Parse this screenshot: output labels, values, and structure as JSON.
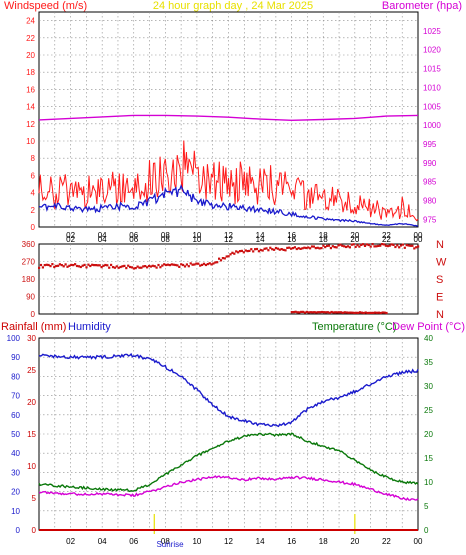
{
  "title": "24 hour graph day , 24 Mar 2025",
  "colors": {
    "background": "#ffffff",
    "plot_background": "#ffffff",
    "gridline": "#8c8c8c",
    "title": "#e8e000",
    "gust": "#ff1a1a",
    "average_wind": "#1a1acc",
    "barometer": "#d400d4",
    "direction": "#cc1010",
    "rainfall": "#cc0000",
    "humidity": "#1a1acc",
    "temperature": "#0a780a",
    "dew_point": "#d400d4",
    "sun_marker": "#e8e000"
  },
  "chart_data": [
    {
      "type": "line",
      "panel": "wind-barometer",
      "left_label": "Windspeed (m/s)",
      "right_label": "Barometer (hpa)",
      "left_ticks": [
        "0",
        "2",
        "4",
        "6",
        "8",
        "10",
        "12",
        "14",
        "16",
        "18",
        "20",
        "22",
        "24"
      ],
      "right_ticks": [
        "975",
        "980",
        "985",
        "990",
        "995",
        "1000",
        "1005",
        "1010",
        "1015",
        "1020",
        "1025"
      ],
      "x_ticks": [
        "02",
        "04",
        "06",
        "08",
        "10",
        "12",
        "14",
        "16",
        "18",
        "20",
        "22",
        "00"
      ],
      "x_range_hours": [
        0,
        24
      ],
      "ylim_left": [
        0,
        25
      ],
      "ylim_right": [
        973,
        1030
      ],
      "grid": true,
      "series": [
        {
          "axis": "left",
          "style": "noisy-gust",
          "hours": [
            0,
            1,
            2,
            3,
            4,
            5,
            6,
            7,
            8,
            9,
            10,
            11,
            12,
            13,
            14,
            15,
            16,
            17,
            18,
            19,
            20,
            21,
            22,
            23,
            24
          ],
          "values": [
            4.0,
            4.2,
            4.0,
            3.8,
            4.2,
            4.5,
            4.5,
            5.5,
            6.5,
            6.8,
            5.8,
            5.6,
            5.4,
            5.0,
            4.8,
            4.6,
            4.2,
            3.8,
            3.2,
            2.8,
            2.6,
            2.2,
            1.5,
            2.0,
            0.5
          ]
        },
        {
          "axis": "left",
          "style": "average",
          "hours": [
            0,
            1,
            2,
            3,
            4,
            5,
            6,
            7,
            8,
            9,
            10,
            11,
            12,
            13,
            14,
            15,
            16,
            17,
            18,
            19,
            20,
            21,
            22,
            23,
            24
          ],
          "values": [
            2.2,
            2.4,
            2.2,
            2.0,
            2.2,
            2.4,
            2.4,
            3.0,
            3.8,
            4.2,
            3.2,
            2.5,
            2.4,
            2.2,
            2.0,
            1.8,
            1.5,
            1.2,
            0.9,
            0.8,
            0.7,
            0.4,
            0.2,
            0.4,
            0.1
          ]
        },
        {
          "axis": "right",
          "style": "barometer",
          "hours": [
            0,
            2,
            4,
            6,
            8,
            10,
            12,
            14,
            16,
            18,
            20,
            22,
            24
          ],
          "values": [
            1001.4,
            1001.8,
            1002.2,
            1002.6,
            1002.6,
            1002.4,
            1002.1,
            1001.6,
            1001.3,
            1001.5,
            1001.8,
            1002.4,
            1002.6
          ]
        }
      ]
    },
    {
      "type": "scatter",
      "panel": "wind-direction",
      "left_ticks": [
        "0",
        "90",
        "180",
        "270",
        "360"
      ],
      "right_ticks": [
        "N",
        "E",
        "S",
        "W",
        "N"
      ],
      "x_ticks": [
        "02",
        "04",
        "06",
        "08",
        "10",
        "12",
        "14",
        "16",
        "18",
        "20",
        "22",
        "00"
      ],
      "ylim": [
        0,
        360
      ],
      "hours": [
        0,
        1,
        2,
        3,
        4,
        5,
        6,
        7,
        8,
        9,
        10,
        11,
        12,
        12.5,
        13,
        14,
        15,
        16,
        17,
        18,
        19,
        20,
        21,
        22,
        23,
        24
      ],
      "values": [
        245,
        250,
        250,
        248,
        245,
        245,
        240,
        245,
        250,
        250,
        255,
        262,
        300,
        318,
        325,
        330,
        335,
        335,
        340,
        345,
        350,
        352,
        355,
        355,
        350,
        340
      ],
      "north_band_hours": [
        16,
        22
      ],
      "north_band_values": [
        8,
        5
      ]
    },
    {
      "type": "line",
      "panel": "temp-humidity",
      "left_labels": [
        "Rainfall (mm)",
        "Humidity"
      ],
      "right_labels": [
        "Temperature (°C)",
        "Dew Point (°C)"
      ],
      "humidity_ticks": [
        "0",
        "10",
        "20",
        "30",
        "40",
        "50",
        "60",
        "70",
        "80",
        "90",
        "100"
      ],
      "rain_ticks": [
        "0",
        "5",
        "10",
        "15",
        "20",
        "25",
        "30"
      ],
      "temp_ticks": [
        "0",
        "5",
        "10",
        "15",
        "20",
        "25",
        "30",
        "35",
        "40"
      ],
      "x_ticks": [
        "02",
        "04",
        "06",
        "08",
        "10",
        "12",
        "14",
        "16",
        "18",
        "20",
        "22",
        "00"
      ],
      "sunrise_label": "Sunrise",
      "sunrise_hour": 7.3,
      "sunset_hour": 20,
      "series": [
        {
          "name": "Humidity",
          "axis": "humidity",
          "hours": [
            0,
            2,
            4,
            6,
            7,
            8,
            9,
            10,
            11,
            12,
            13,
            14,
            15,
            16,
            17,
            18,
            19,
            20,
            21,
            22,
            23,
            24
          ],
          "values": [
            91,
            90,
            90,
            91,
            89,
            85,
            80,
            73,
            65,
            59,
            57,
            55,
            54,
            56,
            63,
            67,
            69,
            72,
            76,
            80,
            82,
            83
          ]
        },
        {
          "name": "Temperature",
          "axis": "temp",
          "hours": [
            0,
            2,
            4,
            6,
            7,
            8,
            9,
            10,
            11,
            12,
            13,
            14,
            15,
            16,
            17,
            18,
            19,
            20,
            21,
            22,
            23,
            24
          ],
          "values": [
            9.5,
            9.0,
            8.5,
            8.2,
            9.5,
            11.5,
            13.5,
            15.5,
            17.0,
            18.5,
            19.5,
            20.0,
            19.8,
            20.0,
            18.5,
            17.5,
            16.5,
            14.5,
            12.5,
            11.0,
            10.0,
            9.8
          ]
        },
        {
          "name": "Dew Point",
          "axis": "temp",
          "hours": [
            0,
            2,
            4,
            6,
            7,
            8,
            9,
            10,
            11,
            12,
            13,
            14,
            15,
            16,
            17,
            18,
            19,
            20,
            21,
            22,
            23,
            24
          ],
          "values": [
            8.0,
            7.5,
            7.5,
            7.2,
            8.0,
            9.0,
            10.0,
            10.5,
            11.0,
            11.0,
            10.5,
            10.8,
            10.5,
            11.0,
            10.8,
            10.5,
            10.0,
            9.5,
            8.5,
            7.5,
            6.5,
            6.3
          ]
        },
        {
          "name": "Rainfall",
          "axis": "rain",
          "hours": [
            0,
            24
          ],
          "values": [
            0,
            0
          ]
        }
      ]
    }
  ]
}
